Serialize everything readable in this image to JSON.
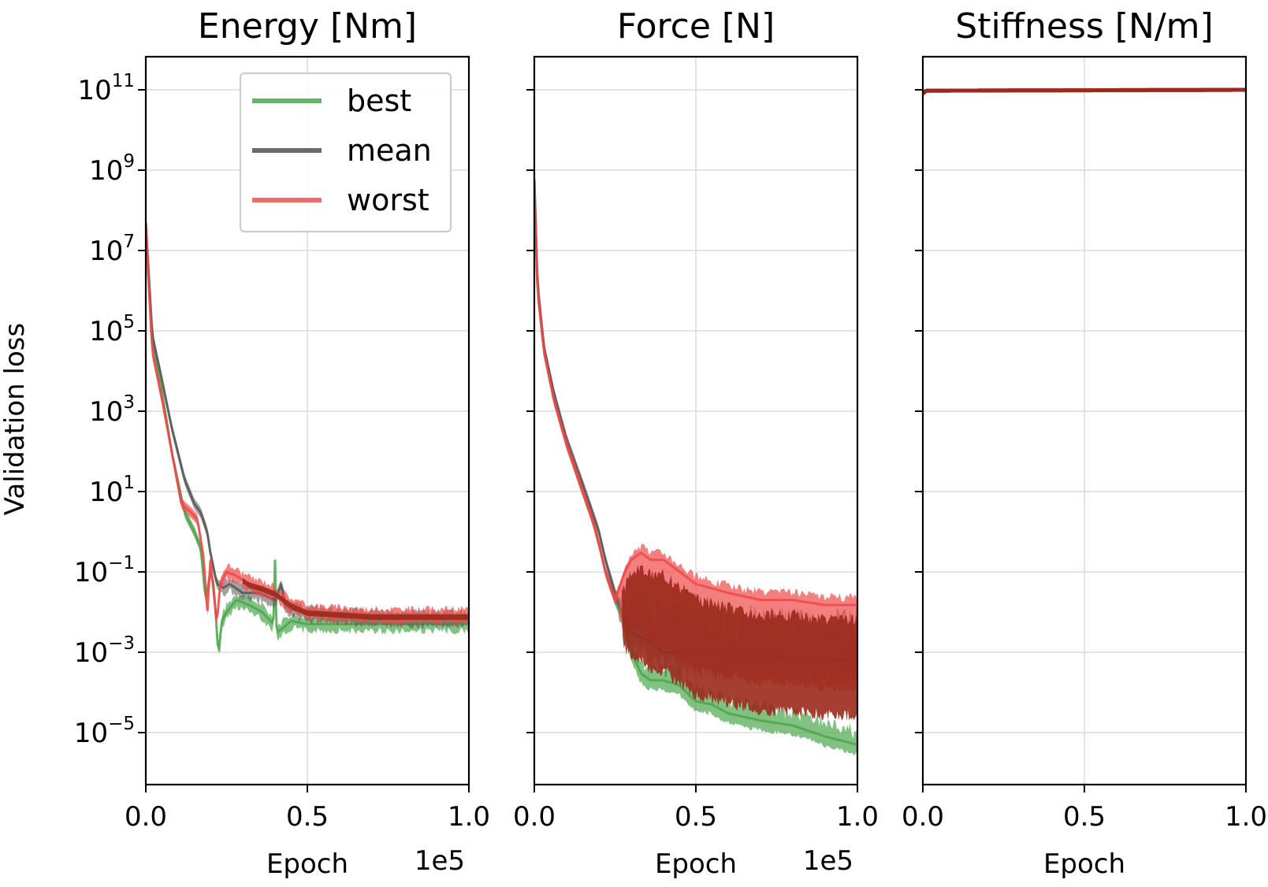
{
  "figure": {
    "ylabel": "Validation loss",
    "yscale": "log",
    "ylim": [
      1e-06,
      1000000000000.0
    ],
    "yticks": [
      {
        "base": "10",
        "exp": "11",
        "value": 100000000000.0
      },
      {
        "base": "10",
        "exp": "9",
        "value": 1000000000.0
      },
      {
        "base": "10",
        "exp": "7",
        "value": 10000000.0
      },
      {
        "base": "10",
        "exp": "5",
        "value": 100000.0
      },
      {
        "base": "10",
        "exp": "3",
        "value": 1000.0
      },
      {
        "base": "10",
        "exp": "1",
        "value": 10.0
      },
      {
        "base": "10",
        "exp": "−1",
        "value": 0.1
      },
      {
        "base": "10",
        "exp": "−3",
        "value": 0.001
      },
      {
        "base": "10",
        "exp": "−5",
        "value": 1e-05
      }
    ],
    "xticks": [
      {
        "label": "0.0",
        "value": 0
      },
      {
        "label": "0.5",
        "value": 50000
      },
      {
        "label": "1.0",
        "value": 100000
      }
    ],
    "xlim": [
      0,
      100000
    ],
    "grid": true,
    "colors": {
      "best": "#4ca64c",
      "mean": "#555555",
      "worst": "#f04848",
      "overlap": "#9a2a1c"
    }
  },
  "legend": {
    "placement": "top-right of first panel",
    "entries": [
      {
        "label": "best",
        "color": "#66b366"
      },
      {
        "label": "mean",
        "color": "#6a6a6a"
      },
      {
        "label": "worst",
        "color": "#f06a6a"
      }
    ]
  },
  "chart_data": [
    {
      "type": "line",
      "title": "Energy [Nm]",
      "xlabel": "Epoch",
      "xoffset": "1e5",
      "series": [
        {
          "name": "best",
          "x": [
            0,
            2000,
            5000,
            8000,
            12000,
            15000,
            17000,
            18500,
            20000,
            21000,
            22500,
            23500,
            25000,
            28000,
            32000,
            36000,
            39500,
            40000,
            40500,
            45000,
            50000,
            60000,
            70000,
            80000,
            90000,
            100000
          ],
          "y": [
            30000000.0,
            50000.0,
            3000.0,
            100,
            3,
            1,
            0.4,
            0.02,
            0.1,
            0.05,
            0.0008,
            0.006,
            0.01,
            0.02,
            0.015,
            0.01,
            0.005,
            0.2,
            0.003,
            0.006,
            0.005,
            0.005,
            0.005,
            0.005,
            0.005,
            0.005
          ]
        },
        {
          "name": "mean",
          "x": [
            0,
            2000,
            5000,
            8000,
            12000,
            15000,
            17000,
            19000,
            20000,
            22000,
            24000,
            26000,
            30000,
            35000,
            40000,
            42000,
            43000,
            45000,
            50000,
            60000,
            70000,
            80000,
            90000,
            100000
          ],
          "y": [
            50000000.0,
            80000.0,
            6000.0,
            400,
            20,
            5,
            3,
            1,
            0.3,
            0.05,
            0.04,
            0.05,
            0.03,
            0.03,
            0.02,
            0.05,
            0.015,
            0.012,
            0.009,
            0.008,
            0.007,
            0.007,
            0.007,
            0.007
          ]
        },
        {
          "name": "worst",
          "x": [
            0,
            2000,
            5000,
            8000,
            11000,
            14000,
            16000,
            18000,
            19000,
            20000,
            22000,
            23000,
            25000,
            28000,
            32000,
            36000,
            40000,
            45000,
            50000,
            60000,
            70000,
            80000,
            90000,
            100000
          ],
          "y": [
            40000000.0,
            30000.0,
            2000.0,
            100,
            5,
            3,
            2,
            0.2,
            0.008,
            0.2,
            0.005,
            0.05,
            0.1,
            0.08,
            0.05,
            0.04,
            0.03,
            0.015,
            0.01,
            0.009,
            0.008,
            0.008,
            0.008,
            0.008
          ]
        }
      ]
    },
    {
      "type": "line",
      "title": "Force [N]",
      "xlabel": "Epoch",
      "xoffset": "1e5",
      "series": [
        {
          "name": "best",
          "x": [
            0,
            1000,
            3000,
            6000,
            10000,
            15000,
            18000,
            20000,
            22000,
            25000,
            28000,
            30000,
            33000,
            36000,
            40000,
            45000,
            50000,
            55000,
            60000,
            70000,
            80000,
            90000,
            100000
          ],
          "y": [
            500000000.0,
            1000000.0,
            30000.0,
            2000.0,
            150,
            10,
            2,
            0.5,
            0.1,
            0.02,
            0.005,
            0.001,
            0.0003,
            0.0002,
            0.0002,
            0.00015,
            6e-05,
            5e-05,
            3e-05,
            2e-05,
            1.5e-05,
            8e-06,
            5e-06
          ]
        },
        {
          "name": "mean",
          "x": [
            0,
            1000,
            3000,
            6000,
            10000,
            15000,
            18000,
            20000,
            22000,
            25000,
            28000,
            30000,
            35000,
            40000,
            50000,
            60000,
            70000,
            80000,
            90000,
            100000
          ],
          "y": [
            600000000.0,
            1500000.0,
            40000.0,
            3000.0,
            200,
            15,
            3,
            1,
            0.2,
            0.03,
            0.006,
            0.003,
            0.002,
            0.001,
            0.001,
            0.0008,
            0.0008,
            0.0007,
            0.0007,
            0.0006
          ]
        },
        {
          "name": "worst",
          "x": [
            0,
            1000,
            3000,
            6000,
            10000,
            15000,
            18000,
            20000,
            22000,
            25000,
            28000,
            30000,
            33000,
            36000,
            40000,
            45000,
            50000,
            60000,
            70000,
            80000,
            90000,
            100000
          ],
          "y": [
            500000000.0,
            1000000.0,
            30000.0,
            2000.0,
            150,
            10,
            2,
            0.5,
            0.1,
            0.02,
            0.1,
            0.2,
            0.3,
            0.2,
            0.2,
            0.1,
            0.05,
            0.03,
            0.02,
            0.02,
            0.015,
            0.015
          ]
        }
      ]
    },
    {
      "type": "line",
      "title": "Stiffness [N/m]",
      "xlabel": "Epoch",
      "xoffset": "",
      "series": [
        {
          "name": "best",
          "x": [
            0,
            1000,
            100000
          ],
          "y": [
            80000000000.0,
            95000000000.0,
            100000000000.0
          ]
        },
        {
          "name": "mean",
          "x": [
            0,
            1000,
            100000
          ],
          "y": [
            80000000000.0,
            95000000000.0,
            100000000000.0
          ]
        },
        {
          "name": "worst",
          "x": [
            0,
            1000,
            100000
          ],
          "y": [
            80000000000.0,
            95000000000.0,
            100000000000.0
          ]
        }
      ]
    }
  ]
}
